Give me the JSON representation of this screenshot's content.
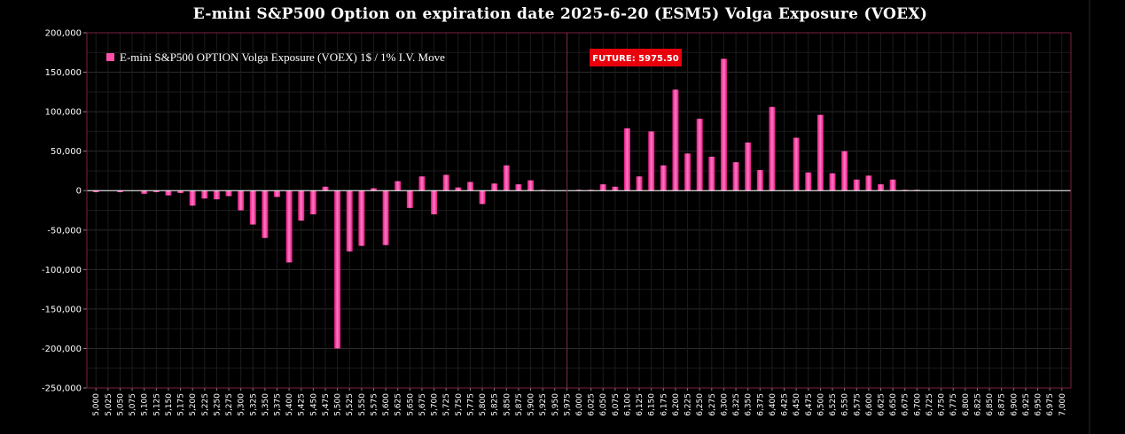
{
  "chart_data": {
    "type": "bar",
    "title": "E-mini S&P500 Option on expiration date 2025-6-20 (ESM5) Volga Exposure (VOEX)",
    "xlabel": "",
    "ylabel": "",
    "ylim": [
      -250000,
      200000
    ],
    "yticks": [
      200000,
      150000,
      100000,
      50000,
      0,
      -50000,
      -100000,
      -150000,
      -200000,
      -250000
    ],
    "grid": true,
    "legend_position": "top-left",
    "future_label": "FUTURE: 5975.50",
    "future_value": 5975.5,
    "colors": {
      "bar_top": "#ff7ac4",
      "bar_bottom": "#e0157e",
      "background": "#000000",
      "frame": "#6a1a3a",
      "future_box": "#e8000b",
      "zero_line": "#ffffff"
    },
    "categories": [
      "5,000",
      "5,025",
      "5,050",
      "5,075",
      "5,100",
      "5,125",
      "5,150",
      "5,175",
      "5,200",
      "5,225",
      "5,250",
      "5,275",
      "5,300",
      "5,325",
      "5,350",
      "5,375",
      "5,400",
      "5,425",
      "5,450",
      "5,475",
      "5,500",
      "5,525",
      "5,550",
      "5,575",
      "5,600",
      "5,625",
      "5,650",
      "5,675",
      "5,700",
      "5,725",
      "5,750",
      "5,775",
      "5,800",
      "5,825",
      "5,850",
      "5,875",
      "5,900",
      "5,925",
      "5,950",
      "5,975",
      "6,000",
      "6,025",
      "6,050",
      "6,075",
      "6,100",
      "6,125",
      "6,150",
      "6,175",
      "6,200",
      "6,225",
      "6,250",
      "6,275",
      "6,300",
      "6,325",
      "6,350",
      "6,375",
      "6,400",
      "6,425",
      "6,450",
      "6,475",
      "6,500",
      "6,525",
      "6,550",
      "6,575",
      "6,600",
      "6,625",
      "6,650",
      "6,675",
      "6,700",
      "6,725",
      "6,750",
      "6,775",
      "6,800",
      "6,825",
      "6,850",
      "6,875",
      "6,900",
      "6,925",
      "6,950",
      "6,975",
      "7,000"
    ],
    "series": [
      {
        "name": "E-mini S&P500 OPTION Volga Exposure (VOEX) 1$ / 1% I.V. Move",
        "values": [
          -2000,
          0,
          -2000,
          0,
          -4000,
          -2000,
          -6000,
          -3000,
          -19000,
          -10000,
          -11000,
          -7000,
          -25000,
          -43000,
          -60000,
          -8000,
          -91000,
          -38000,
          -30000,
          5000,
          -200000,
          -77000,
          -70000,
          3000,
          -69000,
          12000,
          -22000,
          18000,
          -30000,
          20000,
          4000,
          11000,
          -17000,
          9000,
          32000,
          8000,
          13000,
          1000,
          0,
          0,
          1000,
          1000,
          8000,
          5000,
          79000,
          18000,
          75000,
          32000,
          128000,
          47000,
          91000,
          43000,
          167000,
          36000,
          61000,
          26000,
          106000,
          0,
          67000,
          23000,
          96000,
          22000,
          50000,
          14000,
          19000,
          8000,
          14000,
          1000,
          1000,
          0,
          0,
          0,
          0,
          0,
          0,
          0,
          0,
          0,
          0,
          0,
          0
        ]
      }
    ]
  }
}
